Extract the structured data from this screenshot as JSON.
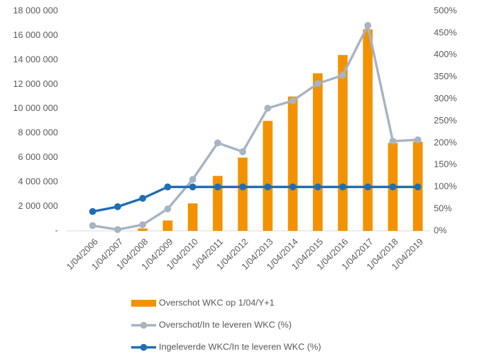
{
  "chart_data": {
    "type": "combo",
    "categories": [
      "1/04/2006",
      "1/04/2007",
      "1/04/2008",
      "1/04/2009",
      "1/04/2010",
      "1/04/2011",
      "1/04/2012",
      "1/04/2013",
      "1/04/2014",
      "1/04/2015",
      "1/04/2016",
      "1/04/2017",
      "1/04/2018",
      "1/04/2019"
    ],
    "series": [
      {
        "name": "Overschot WKC op 1/04/Y+1",
        "type": "bar",
        "color": "#f39200",
        "values": [
          0,
          0,
          200000,
          850000,
          2250000,
          4500000,
          6000000,
          9000000,
          11000000,
          12900000,
          14400000,
          16500000,
          7200000,
          7300000
        ]
      },
      {
        "name": "Overschot/In te leveren WKC (%)",
        "type": "line",
        "axis": "y2",
        "color": "#a7b4c2",
        "values": [
          12,
          3,
          14,
          50,
          117,
          200,
          180,
          279,
          296,
          335,
          354,
          467,
          204,
          207
        ]
      },
      {
        "name": "Ingeleverde WKC/In te leveren WKC (%)",
        "type": "line",
        "axis": "y2",
        "color": "#1f6db5",
        "values": [
          44,
          55,
          74,
          100,
          100,
          100,
          100,
          100,
          100,
          100,
          100,
          100,
          100,
          100
        ]
      }
    ],
    "ylim": [
      0,
      18000000
    ],
    "yticks": [
      {
        "value": 0,
        "label": "-"
      },
      {
        "value": 2000000,
        "label": "2 000 000"
      },
      {
        "value": 4000000,
        "label": "4 000 000"
      },
      {
        "value": 6000000,
        "label": "6 000 000"
      },
      {
        "value": 8000000,
        "label": "8 000 000"
      },
      {
        "value": 10000000,
        "label": "10 000 000"
      },
      {
        "value": 12000000,
        "label": "12 000 000"
      },
      {
        "value": 14000000,
        "label": "14 000 000"
      },
      {
        "value": 16000000,
        "label": "16 000 000"
      },
      {
        "value": 18000000,
        "label": "18 000 000"
      }
    ],
    "y2lim": [
      0,
      500
    ],
    "y2ticks": [
      {
        "value": 0,
        "label": "0%"
      },
      {
        "value": 50,
        "label": "50%"
      },
      {
        "value": 100,
        "label": "100%"
      },
      {
        "value": 150,
        "label": "150%"
      },
      {
        "value": 200,
        "label": "200%"
      },
      {
        "value": 250,
        "label": "250%"
      },
      {
        "value": 300,
        "label": "300%"
      },
      {
        "value": 350,
        "label": "350%"
      },
      {
        "value": 400,
        "label": "400%"
      },
      {
        "value": 450,
        "label": "450%"
      },
      {
        "value": 500,
        "label": "500%"
      }
    ],
    "legend": "bottom"
  }
}
